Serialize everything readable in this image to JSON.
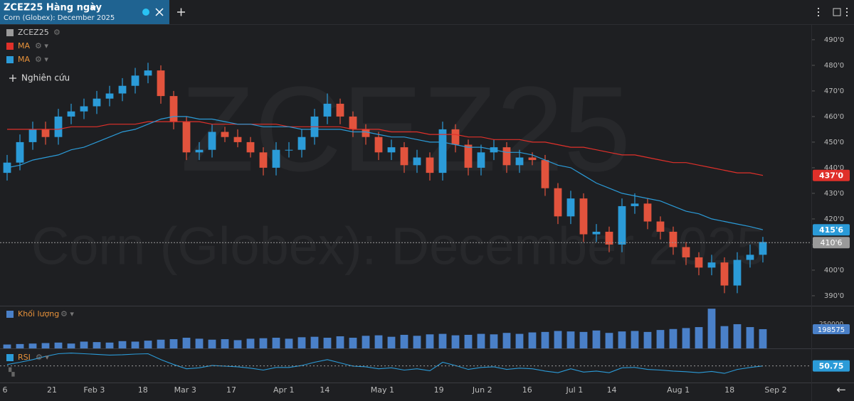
{
  "tab": {
    "title": "ZCEZ25 Hàng ngày",
    "subtitle": "Corn (Globex): December 2025"
  },
  "chart_data": [
    {
      "type": "candlestick",
      "title": "ZCEZ25",
      "subtitle": "Corn (Globex): December 2025",
      "study_button": "Nghiên cứu",
      "color": "#9a9a9a",
      "up_color": "#2b9bd8",
      "down_color": "#e2533d",
      "open": [
        438,
        442,
        450,
        455,
        452,
        460,
        462,
        464,
        467,
        469,
        472,
        476,
        478,
        468,
        458,
        446,
        447,
        454,
        452,
        450,
        446,
        440,
        447,
        447,
        452,
        460,
        465,
        460,
        455,
        452,
        446,
        448,
        441,
        444,
        438,
        455,
        449,
        440,
        446,
        448,
        441,
        444,
        443,
        432,
        421,
        428,
        414,
        415,
        410,
        425,
        426,
        419,
        415,
        409,
        405,
        401,
        403,
        394,
        404,
        406
      ],
      "high": [
        445,
        453,
        458,
        458,
        463,
        465,
        467,
        470,
        472,
        475,
        479,
        481,
        480,
        470,
        460,
        450,
        457,
        456,
        455,
        452,
        448,
        450,
        450,
        455,
        463,
        469,
        467,
        462,
        457,
        454,
        451,
        450,
        447,
        446,
        458,
        457,
        451,
        449,
        451,
        450,
        447,
        446,
        445,
        434,
        431,
        430,
        418,
        417,
        428,
        430,
        428,
        421,
        417,
        411,
        407,
        406,
        405,
        407,
        410,
        413
      ],
      "low": [
        435,
        439,
        447,
        449,
        449,
        457,
        459,
        461,
        464,
        466,
        469,
        473,
        465,
        455,
        443,
        443,
        444,
        450,
        448,
        444,
        437,
        437,
        444,
        444,
        449,
        457,
        457,
        452,
        449,
        443,
        443,
        438,
        438,
        435,
        435,
        446,
        437,
        437,
        443,
        438,
        438,
        441,
        429,
        418,
        418,
        411,
        411,
        407,
        407,
        422,
        416,
        412,
        406,
        402,
        398,
        398,
        391,
        391,
        401,
        403
      ],
      "close": [
        442,
        450,
        455,
        452,
        460,
        462,
        464,
        467,
        469,
        472,
        476,
        478,
        468,
        458,
        446,
        447,
        454,
        452,
        450,
        446,
        440,
        447,
        447,
        452,
        460,
        465,
        460,
        455,
        452,
        446,
        448,
        441,
        444,
        438,
        455,
        449,
        440,
        446,
        448,
        441,
        444,
        443,
        432,
        421,
        428,
        414,
        415,
        410,
        425,
        426,
        419,
        415,
        409,
        405,
        401,
        403,
        394,
        404,
        406,
        411
      ],
      "series": [
        {
          "name": "MA",
          "color": "#e0302a",
          "values": [
            455,
            455,
            455,
            455,
            455,
            456,
            456,
            456,
            457,
            457,
            457,
            458,
            458,
            458,
            458,
            458,
            457,
            457,
            457,
            457,
            457,
            457,
            456,
            456,
            456,
            456,
            456,
            455,
            455,
            455,
            454,
            454,
            454,
            453,
            453,
            453,
            452,
            452,
            451,
            451,
            451,
            450,
            450,
            449,
            448,
            448,
            447,
            446,
            445,
            445,
            444,
            443,
            442,
            442,
            441,
            440,
            439,
            438,
            438,
            437
          ],
          "value_labels": {
            "59": "437'0"
          }
        },
        {
          "name": "MA",
          "color": "#2b9bd8",
          "values": [
            440,
            441,
            443,
            444,
            445,
            447,
            448,
            450,
            452,
            454,
            455,
            457,
            459,
            460,
            460,
            459,
            459,
            458,
            457,
            457,
            456,
            456,
            456,
            455,
            455,
            455,
            455,
            454,
            454,
            453,
            452,
            452,
            451,
            450,
            450,
            449,
            448,
            448,
            447,
            446,
            446,
            445,
            443,
            441,
            440,
            437,
            434,
            432,
            430,
            429,
            428,
            427,
            425,
            423,
            422,
            420,
            419,
            418,
            417,
            415.75
          ],
          "value_labels": {
            "59": "415'6"
          }
        }
      ],
      "last_price": {
        "value": 410.75,
        "label": "410'6"
      },
      "ylim": [
        386.1,
        495.8
      ],
      "yticks": [
        {
          "value": 390,
          "label": "390'0"
        },
        {
          "value": 400,
          "label": "400'0"
        },
        {
          "value": 410,
          "label": "410'0"
        },
        {
          "value": 420,
          "label": "420'0"
        },
        {
          "value": 430,
          "label": "430'0"
        },
        {
          "value": 440,
          "label": "440'0"
        },
        {
          "value": 450,
          "label": "450'0"
        },
        {
          "value": 460,
          "label": "460'0"
        },
        {
          "value": 470,
          "label": "470'0"
        },
        {
          "value": 480,
          "label": "480'0"
        },
        {
          "value": 490,
          "label": "490'0"
        }
      ],
      "xlim": [
        -0.556,
        62.78
      ],
      "xticks": [
        {
          "value": -0.17,
          "label": "6"
        },
        {
          "value": 3.5,
          "label": "21"
        },
        {
          "value": 6.8,
          "label": "Feb 3"
        },
        {
          "value": 10.6,
          "label": "18"
        },
        {
          "value": 13.9,
          "label": "Mar 3"
        },
        {
          "value": 17.5,
          "label": "17"
        },
        {
          "value": 21.6,
          "label": "Apr 1"
        },
        {
          "value": 24.8,
          "label": "14"
        },
        {
          "value": 29.3,
          "label": "May 1"
        },
        {
          "value": 33.7,
          "label": "19"
        },
        {
          "value": 37.1,
          "label": "Jun 2"
        },
        {
          "value": 40.6,
          "label": "16"
        },
        {
          "value": 44.3,
          "label": "Jul 1"
        },
        {
          "value": 47.2,
          "label": "14"
        },
        {
          "value": 52.4,
          "label": "Aug 1"
        },
        {
          "value": 56.4,
          "label": "18"
        },
        {
          "value": 60,
          "label": "Sep 2"
        }
      ],
      "grid": false
    },
    {
      "type": "bar",
      "title": "Khối lượng",
      "color": "#4a80c8",
      "values": [
        40000,
        45000,
        50000,
        55000,
        60000,
        50000,
        70000,
        65000,
        60000,
        75000,
        70000,
        80000,
        90000,
        95000,
        110000,
        100000,
        90000,
        95000,
        85000,
        100000,
        105000,
        110000,
        100000,
        115000,
        120000,
        110000,
        125000,
        110000,
        130000,
        135000,
        120000,
        140000,
        130000,
        145000,
        150000,
        135000,
        140000,
        150000,
        145000,
        160000,
        150000,
        165000,
        170000,
        180000,
        175000,
        170000,
        185000,
        160000,
        175000,
        180000,
        170000,
        190000,
        200000,
        210000,
        220000,
        410000,
        230000,
        250000,
        220000,
        198575
      ],
      "ylim": [
        0,
        426000
      ],
      "yticks": [
        250000
      ]
    },
    {
      "type": "line",
      "title": "RSI",
      "color": "#2b9bd8",
      "values": [
        55,
        62,
        70,
        80,
        88,
        90,
        88,
        86,
        84,
        85,
        87,
        88,
        70,
        55,
        42,
        45,
        52,
        50,
        48,
        44,
        38,
        46,
        46,
        52,
        62,
        70,
        60,
        50,
        48,
        42,
        45,
        38,
        42,
        36,
        62,
        52,
        40,
        46,
        48,
        40,
        44,
        42,
        35,
        30,
        42,
        32,
        35,
        30,
        45,
        46,
        40,
        38,
        35,
        33,
        30,
        34,
        28,
        40,
        46,
        50.75
      ],
      "ylim": [
        0,
        100
      ]
    }
  ]
}
